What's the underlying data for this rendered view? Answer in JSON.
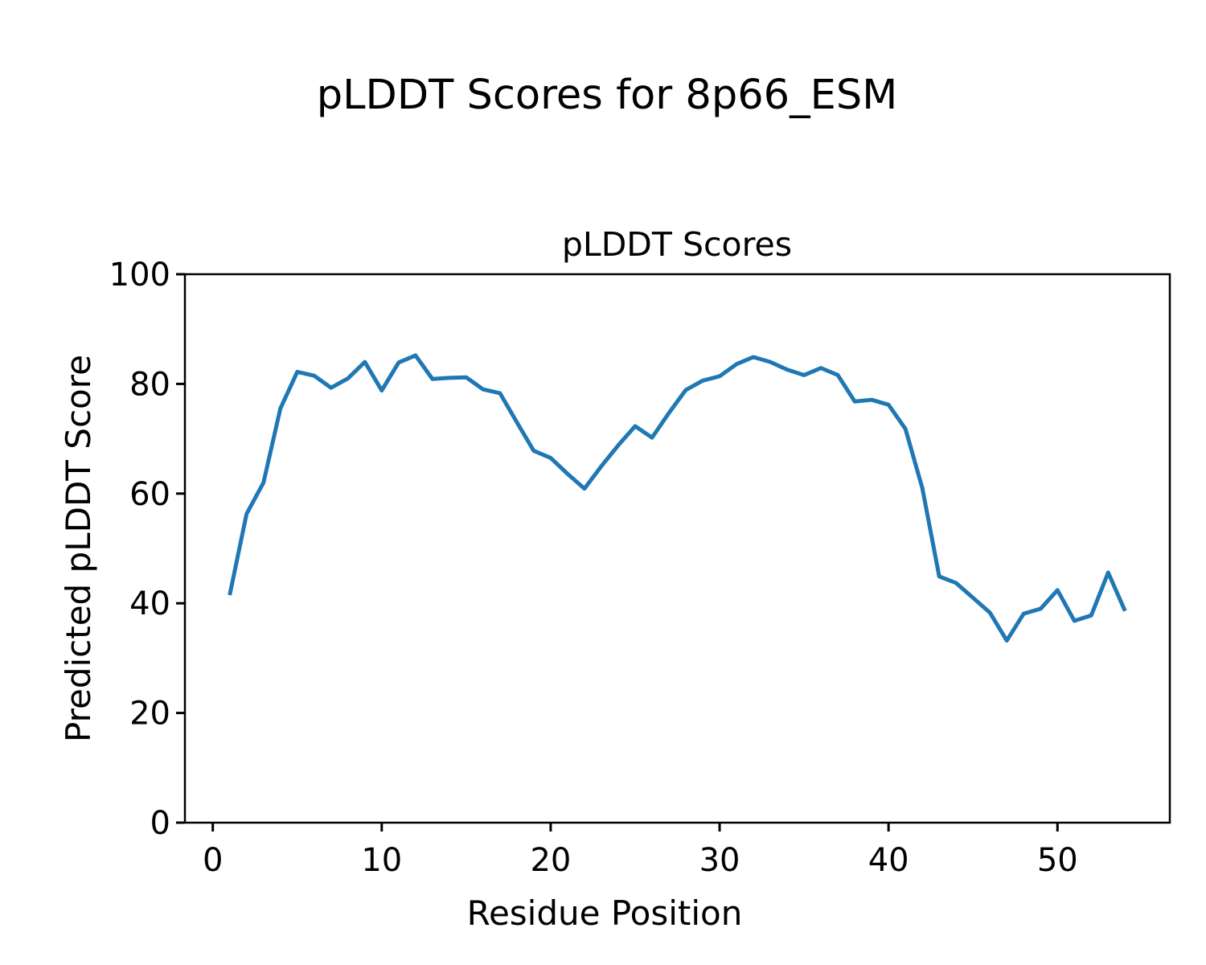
{
  "figure": {
    "suptitle": "pLDDT Scores for 8p66_ESM",
    "background": "#ffffff"
  },
  "chart_data": {
    "type": "line",
    "title": "pLDDT Scores",
    "xlabel": "Residue Position",
    "ylabel": "Predicted pLDDT Score",
    "series": [
      {
        "name": "pLDDT",
        "x": [
          1,
          2,
          3,
          4,
          5,
          6,
          7,
          8,
          9,
          10,
          11,
          12,
          13,
          14,
          15,
          16,
          17,
          18,
          19,
          20,
          21,
          22,
          23,
          24,
          25,
          26,
          27,
          28,
          29,
          30,
          31,
          32,
          33,
          34,
          35,
          36,
          37,
          38,
          39,
          40,
          41,
          42,
          43,
          44,
          45,
          46,
          47,
          48,
          49,
          50,
          51,
          52,
          53,
          54
        ],
        "y": [
          41.5,
          56.3,
          62.0,
          75.5,
          82.2,
          81.5,
          79.3,
          81.0,
          84.0,
          78.8,
          83.9,
          85.2,
          80.9,
          81.1,
          81.2,
          79.0,
          78.3,
          73.0,
          67.8,
          66.5,
          63.6,
          60.9,
          65.0,
          68.8,
          72.3,
          70.2,
          74.7,
          78.9,
          80.6,
          81.4,
          83.6,
          84.9,
          84.0,
          82.6,
          81.6,
          82.9,
          81.6,
          76.8,
          77.1,
          76.2,
          71.8,
          61.0,
          44.9,
          43.7,
          41.0,
          38.3,
          33.2,
          38.1,
          39.0,
          42.4,
          36.8,
          37.8,
          45.6,
          38.6
        ]
      }
    ],
    "xlim": [
      -1.65,
      56.65
    ],
    "ylim": [
      0,
      100
    ],
    "xticks": [
      0,
      10,
      20,
      30,
      40,
      50
    ],
    "yticks": [
      0,
      20,
      40,
      60,
      80,
      100
    ],
    "line_color": "#1f77b4",
    "line_width": 5,
    "axis_color": "#000000",
    "grid": false,
    "legend": "none"
  }
}
